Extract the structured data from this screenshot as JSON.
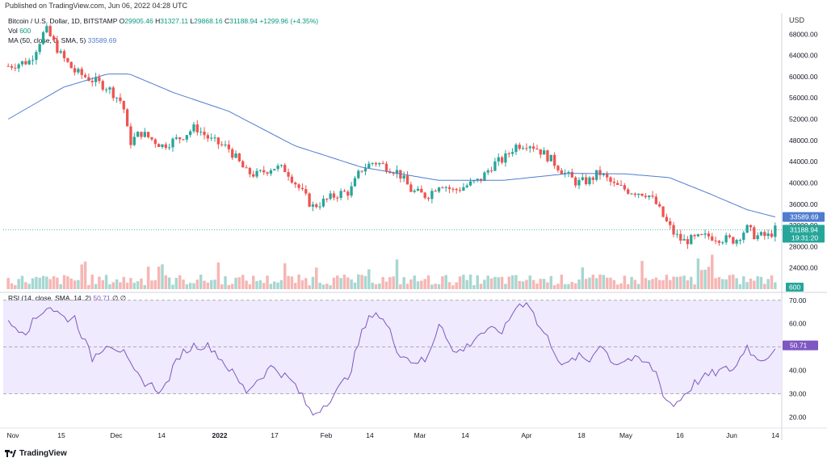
{
  "header": {
    "published": "Published on TradingView.com, Jun 06, 2022 04:28 UTC",
    "symbol": "Bitcoin / U.S. Dollar, 1D, BITSTAMP",
    "o_label": "O",
    "o": "29905.46",
    "h_label": "H",
    "h": "31327.11",
    "l_label": "L",
    "l": "29868.16",
    "c_label": "C",
    "c": "31188.94",
    "change": "+1299.96 (+4.35%)",
    "vol_label": "Vol",
    "vol": "600",
    "ma_label": "MA (50, close, 0, SMA, 5)",
    "ma": "33589.69",
    "rsi_label": "RSI (14, close, SMA, 14, 2)",
    "rsi": "50.71",
    "rsi_extra": "∅ ∅"
  },
  "currency": "USD",
  "brand": "TradingView",
  "colors": {
    "up": "#26a69a",
    "down": "#ef5350",
    "ma": "#4f7ccf",
    "rsi": "#7e57c2",
    "rsi_band": "#efeafd"
  },
  "chart_data": [
    {
      "type": "candlestick",
      "title": "Bitcoin / U.S. Dollar, 1D, BITSTAMP",
      "ylim": [
        20000,
        72000
      ],
      "yticks": [
        24000,
        28000,
        32000,
        36000,
        40000,
        44000,
        48000,
        52000,
        56000,
        60000,
        64000,
        68000
      ],
      "ytick_labels": [
        "24000.00",
        "28000.00",
        "32000.00",
        "36000.00",
        "40000.00",
        "44000.00",
        "48000.00",
        "52000.00",
        "56000.00",
        "60000.00",
        "64000.00",
        "68000.00"
      ],
      "xtick_labels": [
        "Nov",
        "15",
        "Dec",
        "14",
        "2022",
        "17",
        "Feb",
        "14",
        "Mar",
        "14",
        "Apr",
        "18",
        "May",
        "16",
        "Jun",
        "14"
      ],
      "last_price": "31188.94",
      "countdown": "19:31:20",
      "ma_value": "33589.69",
      "volume_value": "600",
      "series": [
        {
          "name": "MA (50, close, 0, SMA, 5)",
          "type": "line"
        },
        {
          "name": "Vol",
          "type": "bar"
        }
      ]
    },
    {
      "type": "line",
      "title": "RSI (14, close, SMA, 14, 2)",
      "ylim": [
        16,
        72
      ],
      "yticks": [
        20,
        30,
        40,
        50,
        60,
        70
      ],
      "ytick_labels": [
        "20.00",
        "30.00",
        "40.00",
        "50.00",
        "60.00",
        "70.00"
      ],
      "last_value": "50.71"
    }
  ]
}
